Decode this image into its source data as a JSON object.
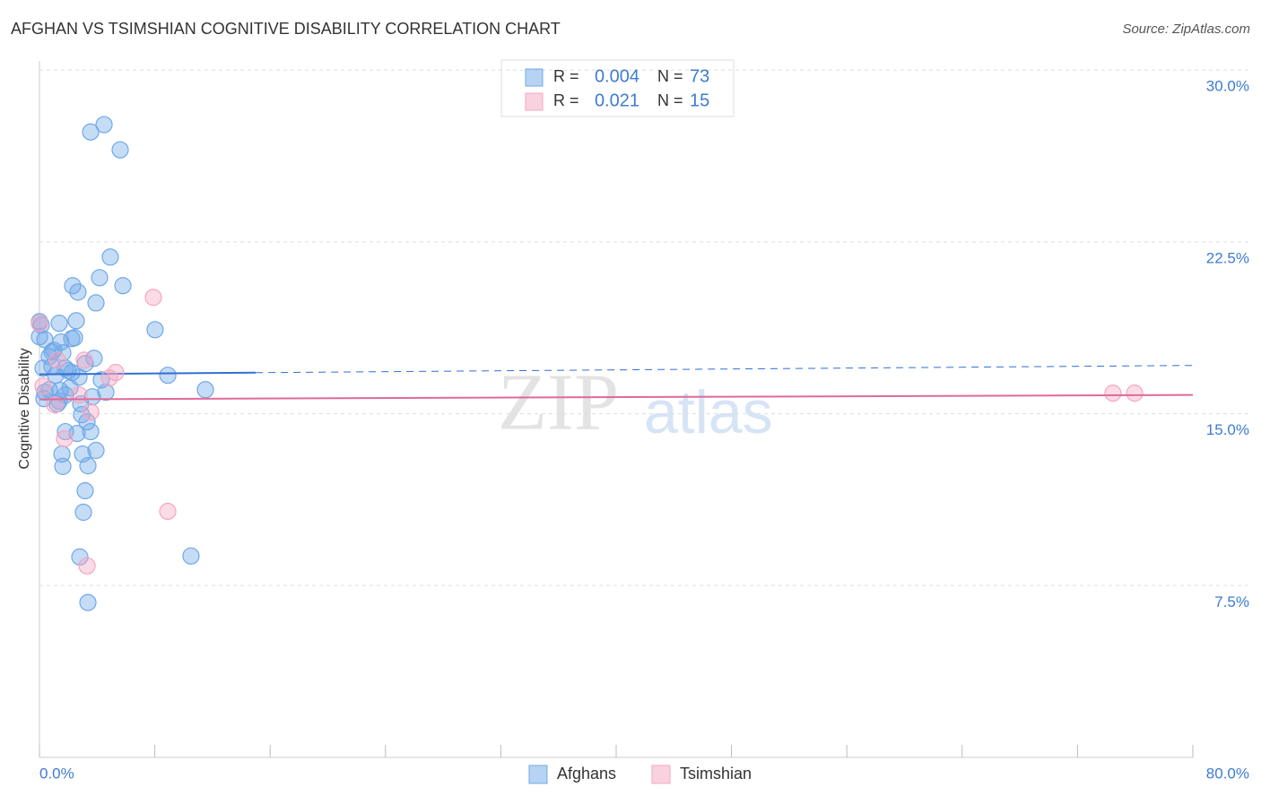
{
  "chart_data": {
    "type": "scatter",
    "title": "AFGHAN VS TSIMSHIAN COGNITIVE DISABILITY CORRELATION CHART",
    "source": "Source: ZipAtlas.com",
    "y_label": "Cognitive Disability",
    "watermark": [
      "ZIP",
      "atlas"
    ],
    "legend_labels": {
      "r": "R =",
      "n": "N ="
    },
    "xlim": [
      0,
      80
    ],
    "ylim": [
      0,
      30.4
    ],
    "xticks": [
      {
        "value": 0,
        "label": "0.0%"
      },
      {
        "value": 80,
        "label": "80.0%"
      }
    ],
    "xminor_ticks": [
      8,
      16,
      24,
      32,
      40,
      48,
      56,
      64,
      72
    ],
    "yticks": [
      {
        "value": 7.5,
        "label": "7.5%"
      },
      {
        "value": 15,
        "label": "15.0%"
      },
      {
        "value": 22.5,
        "label": "22.5%"
      },
      {
        "value": 30,
        "label": "30.0%"
      }
    ],
    "grid": true,
    "series": [
      {
        "name": "Afghans",
        "color": "#6fa8e8",
        "line_color": "#2f6fd1",
        "r": 0.004,
        "n": 73,
        "trend": {
          "x": [
            0,
            80
          ],
          "y": [
            16.72,
            17.11
          ],
          "solid_to": 15
        },
        "x": [
          4.48,
          3.55,
          5.6,
          4.91,
          4.17,
          2.3,
          5.79,
          2.67,
          3.92,
          8.02,
          2.55,
          1.37,
          0.12,
          0.37,
          2.24,
          2.43,
          1.49,
          1.0,
          1.62,
          0.68,
          3.79,
          3.17,
          0.87,
          0.25,
          1.99,
          1.8,
          2.24,
          8.9,
          4.29,
          1.12,
          0.68,
          1.43,
          0.37,
          4.6,
          11.51,
          1.8,
          0.31,
          3.67,
          1.37,
          2.86,
          2.92,
          1.24,
          3.3,
          2.61,
          3.55,
          1.8,
          3.92,
          2.99,
          1.56,
          3.36,
          1.62,
          3.17,
          3.05,
          2.8,
          10.51,
          3.36,
          0.0,
          0.0,
          0.87,
          2.74,
          2.12
        ],
        "values": [
          27.62,
          27.3,
          26.52,
          21.84,
          20.94,
          20.59,
          20.59,
          20.31,
          19.84,
          18.67,
          19.06,
          18.95,
          18.87,
          18.24,
          18.28,
          18.32,
          18.13,
          17.77,
          17.66,
          17.5,
          17.42,
          17.19,
          17.07,
          16.99,
          16.88,
          16.99,
          16.8,
          16.68,
          16.48,
          16.68,
          16.05,
          16.02,
          15.94,
          15.94,
          16.05,
          15.82,
          15.66,
          15.74,
          15.55,
          15.43,
          14.96,
          15.43,
          14.65,
          14.14,
          14.22,
          14.22,
          13.4,
          13.24,
          13.24,
          12.73,
          12.7,
          11.64,
          10.7,
          8.75,
          8.79,
          6.76,
          18.36,
          19.02,
          17.7,
          16.6,
          16.13
        ]
      },
      {
        "name": "Tsimshian",
        "color": "#f4a6c0",
        "line_color": "#e06a98",
        "r": 0.021,
        "n": 15,
        "trend": {
          "x": [
            0,
            80
          ],
          "y": [
            15.63,
            15.82
          ],
          "solid_to": 80
        },
        "x": [
          7.9,
          0.0,
          3.11,
          5.29,
          4.85,
          1.24,
          2.74,
          1.06,
          3.55,
          1.74,
          8.9,
          3.3,
          74.46,
          75.96,
          0.25
        ],
        "values": [
          20.08,
          18.95,
          17.34,
          16.8,
          16.56,
          17.34,
          15.82,
          15.39,
          15.08,
          13.91,
          10.74,
          8.36,
          15.9,
          15.9,
          16.21
        ]
      }
    ]
  }
}
